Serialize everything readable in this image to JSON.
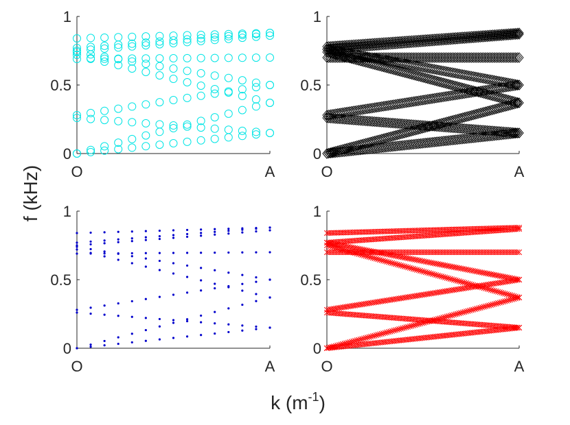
{
  "figure": {
    "ylabel": "f (kHz)",
    "xlabel_base": "k (m",
    "xlabel_sup": "-1",
    "xlabel_close": ")"
  },
  "chart_data": [
    {
      "type": "scatter",
      "panel": "top-left",
      "marker": "circle",
      "color": "#00e5e5",
      "x_ticks": [
        "O",
        "A"
      ],
      "y_ticks": [
        "0",
        "0.5",
        "1"
      ],
      "xlim": [
        0,
        1
      ],
      "ylim": [
        0,
        1
      ],
      "n_points": 15,
      "branches": [
        {
          "name": "b1",
          "f0": 0.0,
          "f1": 0.15
        },
        {
          "name": "b2",
          "f0": 0.0,
          "f1": 0.37
        },
        {
          "name": "b3",
          "f0": 0.26,
          "f1": 0.15
        },
        {
          "name": "b4",
          "f0": 0.28,
          "f1": 0.5
        },
        {
          "name": "b5",
          "f0": 0.69,
          "f1": 0.7
        },
        {
          "name": "b6",
          "f0": 0.72,
          "f1": 0.37
        },
        {
          "name": "b7",
          "f0": 0.74,
          "f1": 0.5
        },
        {
          "name": "b8",
          "f0": 0.75,
          "f1": 0.86
        },
        {
          "name": "b9",
          "f0": 0.77,
          "f1": 0.88
        },
        {
          "name": "b10",
          "f0": 0.84,
          "f1": 0.88
        }
      ]
    },
    {
      "type": "scatter",
      "panel": "top-right",
      "marker": "diamond",
      "color": "#000000",
      "x_ticks": [
        "O",
        "A"
      ],
      "y_ticks": [
        "0",
        "0.5",
        "1"
      ],
      "xlim": [
        0,
        1
      ],
      "ylim": [
        0,
        1
      ],
      "n_points": 110,
      "branches": [
        {
          "name": "b1",
          "f0": 0.0,
          "f1": 0.15
        },
        {
          "name": "b2",
          "f0": 0.0,
          "f1": 0.37
        },
        {
          "name": "b3",
          "f0": 0.26,
          "f1": 0.15
        },
        {
          "name": "b4",
          "f0": 0.28,
          "f1": 0.5
        },
        {
          "name": "b5",
          "f0": 0.7,
          "f1": 0.7
        },
        {
          "name": "b6",
          "f0": 0.74,
          "f1": 0.37
        },
        {
          "name": "b7",
          "f0": 0.76,
          "f1": 0.5
        },
        {
          "name": "b8",
          "f0": 0.76,
          "f1": 0.87
        },
        {
          "name": "b9",
          "f0": 0.78,
          "f1": 0.88
        }
      ]
    },
    {
      "type": "scatter",
      "panel": "bottom-left",
      "marker": "dot",
      "color": "#0000cc",
      "x_ticks": [
        "O",
        "A"
      ],
      "y_ticks": [
        "0",
        "0.5",
        "1"
      ],
      "xlim": [
        0,
        1
      ],
      "ylim": [
        0,
        1
      ],
      "n_points": 15,
      "branches": [
        {
          "name": "b1",
          "f0": 0.0,
          "f1": 0.15
        },
        {
          "name": "b2",
          "f0": 0.0,
          "f1": 0.37
        },
        {
          "name": "b3",
          "f0": 0.26,
          "f1": 0.15
        },
        {
          "name": "b4",
          "f0": 0.28,
          "f1": 0.5
        },
        {
          "name": "b5",
          "f0": 0.69,
          "f1": 0.7
        },
        {
          "name": "b6",
          "f0": 0.72,
          "f1": 0.37
        },
        {
          "name": "b7",
          "f0": 0.74,
          "f1": 0.5
        },
        {
          "name": "b8",
          "f0": 0.75,
          "f1": 0.86
        },
        {
          "name": "b9",
          "f0": 0.77,
          "f1": 0.88
        },
        {
          "name": "b10",
          "f0": 0.84,
          "f1": 0.88
        }
      ]
    },
    {
      "type": "scatter",
      "panel": "bottom-right",
      "marker": "x",
      "color": "#ff0000",
      "x_ticks": [
        "O",
        "A"
      ],
      "y_ticks": [
        "0",
        "0.5",
        "1"
      ],
      "xlim": [
        0,
        1
      ],
      "ylim": [
        0,
        1
      ],
      "n_points": 110,
      "branches": [
        {
          "name": "b1",
          "f0": 0.0,
          "f1": 0.15
        },
        {
          "name": "b2",
          "f0": 0.0,
          "f1": 0.37
        },
        {
          "name": "b3",
          "f0": 0.26,
          "f1": 0.15
        },
        {
          "name": "b4",
          "f0": 0.28,
          "f1": 0.5
        },
        {
          "name": "b5",
          "f0": 0.7,
          "f1": 0.7
        },
        {
          "name": "b6",
          "f0": 0.75,
          "f1": 0.37
        },
        {
          "name": "b7",
          "f0": 0.77,
          "f1": 0.5
        },
        {
          "name": "b8",
          "f0": 0.77,
          "f1": 0.87
        },
        {
          "name": "b9",
          "f0": 0.84,
          "f1": 0.88
        }
      ]
    }
  ]
}
